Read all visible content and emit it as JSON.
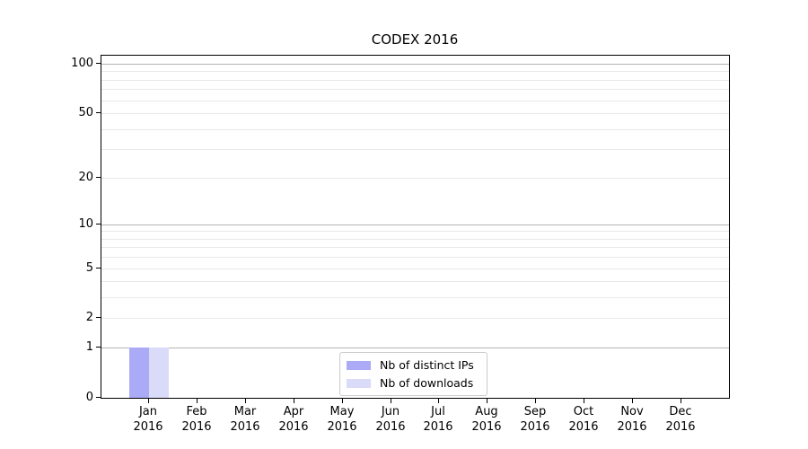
{
  "chart_data": {
    "type": "bar",
    "title": "CODEX 2016",
    "categories": [
      "Jan 2016",
      "Feb 2016",
      "Mar 2016",
      "Apr 2016",
      "May 2016",
      "Jun 2016",
      "Jul 2016",
      "Aug 2016",
      "Sep 2016",
      "Oct 2016",
      "Nov 2016",
      "Dec 2016"
    ],
    "series": [
      {
        "name": "Nb of distinct IPs",
        "color": "#aaaaf7",
        "values": [
          1,
          0,
          0,
          0,
          0,
          0,
          0,
          0,
          0,
          0,
          0,
          0
        ]
      },
      {
        "name": "Nb of downloads",
        "color": "#dadaf9",
        "values": [
          1,
          0,
          0,
          0,
          0,
          0,
          0,
          0,
          0,
          0,
          0,
          0
        ]
      }
    ],
    "xlabel": "",
    "ylabel": "",
    "yscale": "log1p",
    "ylim": [
      0,
      112
    ],
    "ytick_labels": [
      0,
      1,
      2,
      5,
      10,
      20,
      50,
      100
    ],
    "gridlines": {
      "major_values": [
        1,
        10,
        100
      ],
      "minor_values": [
        2,
        3,
        4,
        5,
        6,
        7,
        8,
        9,
        20,
        30,
        40,
        50,
        60,
        70,
        80,
        90
      ],
      "major_color": "#b5b5b5",
      "minor_color": "#e9e9e9"
    },
    "legend": {
      "position": "lower center"
    }
  }
}
